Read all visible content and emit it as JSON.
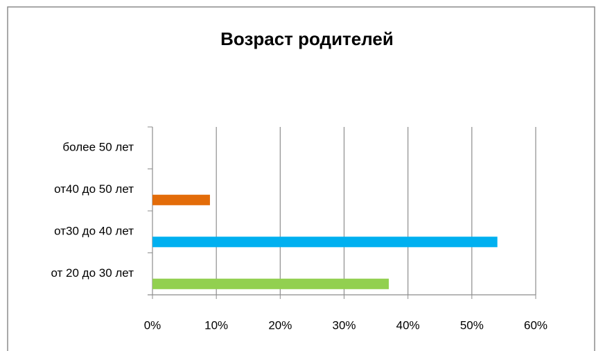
{
  "chart_data": {
    "type": "bar",
    "orientation": "horizontal",
    "title": "Возраст родителей",
    "categories": [
      "от 20 до 30 лет",
      "от30 до 40 лет",
      "от40 до 50 лет",
      "более 50 лет"
    ],
    "values": [
      37,
      54,
      9,
      0
    ],
    "colors": [
      "#92d050",
      "#00b0f0",
      "#e36c09",
      null
    ],
    "xlim": [
      0,
      60
    ],
    "xticks": [
      {
        "value": 0,
        "label": "0%"
      },
      {
        "value": 10,
        "label": "10%"
      },
      {
        "value": 20,
        "label": "20%"
      },
      {
        "value": 30,
        "label": "30%"
      },
      {
        "value": 40,
        "label": "40%"
      },
      {
        "value": 50,
        "label": "50%"
      },
      {
        "value": 60,
        "label": "60%"
      }
    ],
    "grid": true
  }
}
